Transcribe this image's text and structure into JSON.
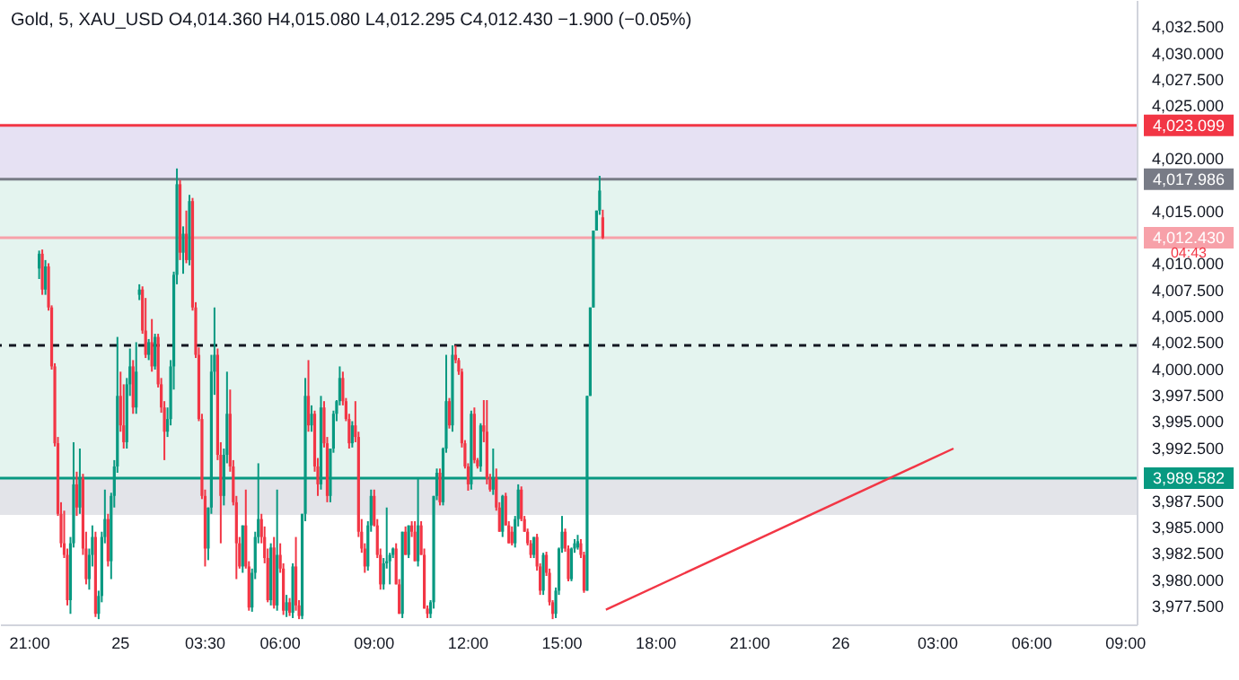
{
  "chart_data": {
    "type": "candlestick",
    "title": "Gold, 5, XAU_USD O4,014.360 H4,015.080 L4,012.295 C4,012.430 −1.900 (−0.05%)",
    "categories": [
      null,
      null,
      null,
      null,
      null,
      null,
      null,
      null,
      null,
      "21:00",
      null,
      null,
      null,
      null,
      null,
      null,
      null,
      null,
      null,
      null,
      null,
      null,
      null,
      null,
      null,
      null,
      null,
      null,
      null,
      null,
      null,
      null,
      null,
      null,
      null,
      null,
      null,
      null,
      "25",
      null,
      null,
      null,
      null,
      null,
      null,
      null,
      null,
      null,
      null,
      null,
      null,
      null,
      null,
      null,
      null,
      null,
      null,
      null,
      null,
      null,
      null,
      null,
      null,
      null,
      null,
      "03:30",
      null,
      null,
      null,
      null,
      null,
      null,
      null,
      null,
      null,
      null,
      null,
      null,
      null,
      null,
      null,
      null,
      null,
      null,
      null,
      null,
      null,
      null,
      null,
      "06:00",
      null,
      null,
      null,
      null,
      null,
      null,
      null,
      null,
      null,
      null,
      null,
      null,
      null,
      null,
      null,
      null,
      null,
      null,
      null,
      null,
      null,
      null,
      null,
      null,
      null,
      null,
      null,
      null,
      null,
      "09:00",
      null,
      null,
      null,
      null,
      null,
      null,
      null,
      null,
      null,
      null,
      null,
      null,
      null,
      null,
      null,
      null,
      null,
      null,
      null,
      null,
      null,
      null,
      null,
      null,
      null,
      null,
      null,
      null,
      null,
      "12:00",
      null,
      null,
      null,
      null,
      null,
      null,
      null,
      null,
      null,
      null,
      null,
      null,
      null,
      null,
      null,
      null,
      null,
      null,
      null,
      null,
      null,
      null,
      null,
      null,
      null,
      null,
      null,
      null,
      null,
      "15:00",
      null,
      null,
      null,
      null,
      null,
      null,
      null,
      null,
      null,
      null,
      null,
      null,
      null,
      null,
      null,
      null,
      null,
      null,
      null,
      null,
      null,
      null,
      null,
      null,
      null,
      null,
      null,
      null,
      null,
      "18:00",
      null,
      null,
      null,
      null,
      null,
      null,
      null,
      null,
      null,
      null,
      null,
      null,
      null,
      null,
      null,
      null,
      null,
      null,
      null,
      null,
      null,
      null,
      null,
      null,
      null,
      null,
      null,
      null,
      null,
      "21:00",
      null,
      null,
      null,
      null,
      null,
      null,
      null,
      null,
      null,
      null,
      null,
      null,
      null,
      null,
      null,
      null,
      null,
      null,
      null,
      null,
      null,
      null,
      null,
      null,
      null,
      null,
      null,
      null,
      "26",
      null,
      null,
      null,
      null,
      null,
      null,
      null,
      null,
      null,
      null,
      null,
      null,
      null,
      null,
      null,
      null,
      null,
      null,
      null,
      null,
      null,
      null,
      null,
      null,
      null,
      null,
      null,
      null,
      null,
      null,
      "03:00",
      null,
      null,
      null,
      null,
      null,
      null,
      null,
      null,
      null,
      null,
      null,
      null,
      null,
      null,
      null,
      null,
      null,
      null,
      null,
      null,
      null,
      null,
      null,
      null,
      null,
      null,
      null,
      null,
      null,
      "06:00",
      null,
      null,
      null,
      null,
      null,
      null,
      null,
      null,
      null,
      null,
      null,
      null,
      null,
      null,
      null,
      null,
      null,
      null,
      null,
      null,
      null,
      null,
      null,
      null,
      null,
      null,
      null,
      null,
      null,
      "09:00",
      null,
      null,
      null
    ],
    "ohlc": [
      null,
      null,
      null,
      null,
      null,
      null,
      null,
      null,
      null,
      null,
      null,
      null,
      [
        4009.5,
        4011.2,
        4008.5,
        4010.9
      ],
      [
        4010.9,
        4011.3,
        4007.0,
        4007.5
      ],
      [
        4007.5,
        4010.3,
        4007.0,
        4009.7
      ],
      [
        4009.7,
        4010.0,
        4005.5,
        4005.8
      ],
      [
        4005.8,
        4006.0,
        3999.9,
        4000.2
      ],
      [
        4000.2,
        4000.5,
        3992.6,
        3992.9
      ],
      [
        3992.9,
        3993.5,
        3986.0,
        3986.2
      ],
      [
        3986.2,
        3987.3,
        3983.0,
        3983.4
      ],
      [
        3983.4,
        3986.5,
        3982.0,
        3982.3
      ],
      [
        3982.3,
        3982.9,
        3977.5,
        3978.0
      ],
      [
        3978.0,
        3984.0,
        3976.7,
        3983.4
      ],
      [
        3983.4,
        3993.0,
        3983.0,
        3989.0
      ],
      [
        3989.0,
        3990.2,
        3986.0,
        3986.8
      ],
      [
        3986.8,
        3992.4,
        3986.2,
        3989.6
      ],
      [
        3989.6,
        3990.0,
        3982.3,
        3982.9
      ],
      [
        3982.9,
        3984.5,
        3979.5,
        3980.0
      ],
      [
        3980.0,
        3982.9,
        3979.0,
        3982.3
      ],
      [
        3982.3,
        3985.1,
        3981.2,
        3984.0
      ],
      [
        3984.0,
        3984.5,
        3976.4,
        3976.7
      ],
      [
        3976.7,
        3978.9,
        3976.2,
        3978.4
      ],
      [
        3978.4,
        3984.5,
        3977.8,
        3984.0
      ],
      [
        3984.0,
        3988.5,
        3983.4,
        3985.7
      ],
      [
        3985.7,
        3986.2,
        3981.2,
        3981.7
      ],
      [
        3981.7,
        3988.2,
        3980.0,
        3987.9
      ],
      [
        3987.9,
        3991.3,
        3986.8,
        3990.7
      ],
      [
        3990.7,
        4003.0,
        3990.1,
        3997.4
      ],
      [
        3997.4,
        3999.7,
        3994.0,
        3994.6
      ],
      [
        3994.6,
        3998.5,
        3992.4,
        3993.0
      ],
      [
        3993.0,
        3999.1,
        3992.4,
        3998.5
      ],
      [
        3998.5,
        4001.9,
        3997.4,
        4000.2
      ],
      [
        4000.2,
        4000.8,
        3995.7,
        3996.3
      ],
      [
        3996.3,
        4002.5,
        3995.7,
        3999.7
      ],
      [
        4007.0,
        4008.0,
        4006.5,
        4007.5
      ],
      [
        4007.5,
        4007.8,
        4003.3,
        4003.6
      ],
      [
        4003.6,
        4006.7,
        4001.0,
        4001.3
      ],
      [
        4001.3,
        4002.8,
        4000.8,
        4002.5
      ],
      [
        4002.5,
        4004.7,
        3999.7,
        4000.2
      ],
      [
        4000.2,
        4003.3,
        3999.9,
        4003.0
      ],
      [
        4003.0,
        4003.3,
        3998.2,
        3998.5
      ],
      [
        3998.5,
        3999.1,
        3995.8,
        3996.3
      ],
      [
        3996.3,
        3996.9,
        3991.3,
        3994.0
      ],
      [
        3994.0,
        3996.3,
        3993.5,
        3995.2
      ],
      [
        3995.2,
        4000.8,
        3994.6,
        4000.2
      ],
      [
        4000.2,
        4009.2,
        3998.0,
        4008.9
      ],
      [
        4008.9,
        4019.0,
        4008.0,
        4017.5
      ],
      [
        4017.5,
        4017.9,
        4010.3,
        4011.0
      ],
      [
        4011.0,
        4013.5,
        4009.0,
        4012.8
      ],
      [
        4012.8,
        4015.0,
        4010.0,
        4010.3
      ],
      [
        4010.3,
        4016.5,
        4009.8,
        4015.9
      ],
      [
        4015.9,
        4016.2,
        4005.5,
        4005.8
      ],
      [
        4005.8,
        4006.3,
        4001.0,
        4001.3
      ],
      [
        4001.3,
        4002.0,
        3995.0,
        3995.2
      ],
      [
        3995.2,
        3995.7,
        3987.6,
        3987.9
      ],
      [
        3987.9,
        3988.5,
        3981.2,
        3982.9
      ],
      [
        3982.9,
        3986.8,
        3981.8,
        3986.8
      ],
      [
        3986.8,
        4001.3,
        3986.2,
        3999.7
      ],
      [
        3999.7,
        4005.8,
        3997.5,
        4001.3
      ],
      [
        4001.3,
        4001.9,
        3991.3,
        3991.8
      ],
      [
        3991.8,
        3993.0,
        3983.4,
        3987.9
      ],
      [
        3987.9,
        3992.4,
        3987.0,
        3991.8
      ],
      [
        3991.8,
        3999.7,
        3991.0,
        3995.7
      ],
      [
        3995.7,
        3998.0,
        3990.2,
        3990.7
      ],
      [
        3990.7,
        3991.3,
        3987.0,
        3987.3
      ],
      [
        3987.3,
        3987.9,
        3980.0,
        3983.4
      ],
      [
        3983.4,
        3984.0,
        3981.0,
        3981.2
      ],
      [
        3981.2,
        3985.1,
        3980.6,
        3985.1
      ],
      [
        3985.1,
        3988.5,
        3981.0,
        3981.2
      ],
      [
        3981.2,
        3981.7,
        3977.0,
        3977.3
      ],
      [
        3977.3,
        3981.0,
        3976.9,
        3980.6
      ],
      [
        3980.6,
        3984.5,
        3980.0,
        3984.0
      ],
      [
        3984.0,
        3991.0,
        3983.4,
        3985.7
      ],
      [
        3985.7,
        3986.2,
        3983.4,
        3984.0
      ],
      [
        3984.0,
        3985.0,
        3981.5,
        3982.0
      ],
      [
        3982.0,
        3982.9,
        3977.8,
        3978.0
      ],
      [
        3978.0,
        3983.4,
        3977.5,
        3983.0
      ],
      [
        3983.0,
        3984.0,
        3977.2,
        3977.5
      ],
      [
        3977.5,
        3988.5,
        3977.0,
        3982.3
      ],
      [
        3982.3,
        3983.4,
        3980.6,
        3981.0
      ],
      [
        3981.0,
        3981.5,
        3976.6,
        3977.0
      ],
      [
        3977.0,
        3978.5,
        3976.4,
        3977.8
      ],
      [
        3977.8,
        3978.2,
        3976.5,
        3976.8
      ],
      [
        3976.8,
        3981.5,
        3976.3,
        3981.2
      ],
      [
        3981.2,
        3984.0,
        3977.0,
        3977.5
      ],
      [
        3977.5,
        3978.0,
        3976.2,
        3976.5
      ],
      [
        3976.5,
        3986.2,
        3976.2,
        3986.2
      ],
      [
        3986.2,
        3999.1,
        3985.5,
        3997.4
      ],
      [
        3997.4,
        4000.8,
        3994.0,
        3994.6
      ],
      [
        3994.6,
        3996.5,
        3994.0,
        3995.7
      ],
      [
        3995.7,
        3996.0,
        3990.2,
        3990.7
      ],
      [
        3990.7,
        3991.5,
        3987.9,
        3989.0
      ],
      [
        3989.0,
        3997.4,
        3988.5,
        3996.3
      ],
      [
        3996.3,
        3996.9,
        3992.5,
        3992.9
      ],
      [
        3992.9,
        3993.5,
        3987.3,
        3987.9
      ],
      [
        3987.9,
        3992.4,
        3987.3,
        3992.4
      ],
      [
        3992.4,
        3996.0,
        3992.0,
        3995.7
      ],
      [
        3995.7,
        3997.0,
        3995.0,
        3996.9
      ],
      [
        3996.9,
        4000.2,
        3996.5,
        3999.1
      ],
      [
        3999.1,
        3999.7,
        3996.5,
        3996.9
      ],
      [
        3996.9,
        3997.2,
        3995.0,
        3995.2
      ],
      [
        3995.2,
        3995.7,
        3992.4,
        3992.9
      ],
      [
        3992.9,
        3995.0,
        3992.5,
        3994.6
      ],
      [
        3994.6,
        3996.9,
        3993.0,
        3993.5
      ],
      [
        3993.5,
        3994.0,
        3984.0,
        3984.5
      ],
      [
        3984.5,
        3985.7,
        3982.5,
        3982.9
      ],
      [
        3982.9,
        3983.4,
        3980.6,
        3981.2
      ],
      [
        3981.2,
        3985.5,
        3980.8,
        3985.1
      ],
      [
        3985.1,
        3988.5,
        3984.5,
        3987.9
      ],
      [
        3987.9,
        3988.5,
        3985.0,
        3985.1
      ],
      [
        3985.1,
        3985.7,
        3982.0,
        3982.3
      ],
      [
        3982.3,
        3982.9,
        3979.0,
        3979.5
      ],
      [
        3979.5,
        3982.0,
        3979.0,
        3981.5
      ],
      [
        3981.5,
        3986.8,
        3981.0,
        3981.7
      ],
      [
        3981.7,
        3982.5,
        3979.5,
        3982.3
      ],
      [
        3982.3,
        3983.0,
        3982.0,
        3982.9
      ],
      [
        3982.9,
        3983.4,
        3979.5,
        3979.5
      ],
      [
        3979.5,
        3980.0,
        3976.7,
        3976.7
      ],
      [
        3976.7,
        3984.5,
        3976.3,
        3984.5
      ],
      [
        3984.5,
        3985.0,
        3982.3,
        3982.3
      ],
      [
        3982.3,
        3985.1,
        3982.0,
        3985.1
      ],
      [
        3985.1,
        3985.5,
        3984.0,
        3984.5
      ],
      [
        3984.5,
        3985.5,
        3981.7,
        3981.7
      ],
      [
        3981.7,
        3989.6,
        3981.2,
        3985.1
      ],
      [
        3985.1,
        3985.5,
        3982.3,
        3982.3
      ],
      [
        3982.3,
        3982.9,
        3977.2,
        3977.2
      ],
      [
        3977.2,
        3977.5,
        3976.3,
        3976.7
      ],
      [
        3976.7,
        3978.0,
        3976.3,
        3977.8
      ],
      [
        3977.8,
        3987.9,
        3977.2,
        3987.9
      ],
      [
        3987.9,
        3990.5,
        3987.5,
        3990.1
      ],
      [
        3990.1,
        3990.5,
        3987.0,
        3987.3
      ],
      [
        3987.3,
        3992.5,
        3987.0,
        3992.4
      ],
      [
        3992.4,
        4001.3,
        3992.0,
        3996.9
      ],
      [
        3996.9,
        3997.2,
        3994.3,
        3994.6
      ],
      [
        3994.6,
        4002.2,
        3994.0,
        4001.3
      ],
      [
        4001.3,
        4002.2,
        4000.5,
        4000.8
      ],
      [
        4000.8,
        4001.0,
        3999.4,
        3999.7
      ],
      [
        3999.7,
        4000.0,
        3992.5,
        3992.9
      ],
      [
        3992.9,
        3993.2,
        3990.5,
        3990.7
      ],
      [
        3990.7,
        3991.0,
        3988.4,
        3989.0
      ],
      [
        3989.0,
        3996.0,
        3988.5,
        3995.7
      ],
      [
        3995.7,
        3996.3,
        3991.0,
        3991.3
      ],
      [
        3991.3,
        3991.5,
        3990.5,
        3990.7
      ],
      [
        3990.7,
        3994.8,
        3990.2,
        3994.6
      ],
      [
        3994.6,
        3997.0,
        3993.0,
        3994.0
      ],
      [
        3994.0,
        3997.0,
        3989.0,
        3989.6
      ],
      [
        3989.6,
        3990.0,
        3988.3,
        3988.5
      ],
      [
        3988.5,
        3992.4,
        3988.0,
        3989.6
      ],
      [
        3989.6,
        3990.5,
        3986.5,
        3986.8
      ],
      [
        3986.8,
        3987.3,
        3984.5,
        3984.5
      ],
      [
        3984.5,
        3988.0,
        3984.0,
        3987.9
      ],
      [
        3987.9,
        3988.2,
        3985.1,
        3985.1
      ],
      [
        3985.1,
        3985.5,
        3983.4,
        3983.4
      ],
      [
        3984.5,
        3985.0,
        3983.2,
        3983.4
      ],
      [
        3983.4,
        3986.0,
        3983.0,
        3985.7
      ],
      [
        3985.7,
        3989.0,
        3985.0,
        3988.5
      ],
      [
        3988.5,
        3988.8,
        3985.5,
        3985.7
      ],
      [
        3985.7,
        3986.0,
        3984.5,
        3984.5
      ],
      [
        3984.5,
        3984.8,
        3983.2,
        3983.4
      ],
      [
        3983.4,
        3983.7,
        3982.0,
        3982.3
      ],
      [
        3982.3,
        3984.0,
        3982.0,
        3984.0
      ],
      [
        3984.0,
        3984.3,
        3980.8,
        3981.2
      ],
      [
        3981.2,
        3981.5,
        3978.5,
        3978.9
      ],
      [
        3978.9,
        3982.5,
        3978.5,
        3982.3
      ],
      [
        3982.3,
        3982.6,
        3980.3,
        3980.6
      ],
      [
        3980.6,
        3981.0,
        3977.5,
        3977.8
      ],
      [
        3977.8,
        3978.0,
        3976.2,
        3976.7
      ],
      [
        3976.7,
        3979.2,
        3976.3,
        3978.9
      ],
      [
        3978.9,
        3983.0,
        3978.5,
        3982.9
      ],
      [
        3982.9,
        3986.0,
        3982.5,
        3984.5
      ],
      [
        3984.5,
        3984.8,
        3982.6,
        3982.9
      ],
      [
        3982.9,
        3983.2,
        3979.8,
        3980.0
      ],
      [
        3980.0,
        3983.0,
        3979.8,
        3982.9
      ],
      [
        3982.9,
        3983.8,
        3982.5,
        3983.4
      ],
      [
        3983.0,
        3984.2,
        3982.8,
        3983.6
      ],
      [
        3983.4,
        3983.8,
        3982.0,
        3982.3
      ],
      [
        3982.3,
        3982.6,
        3978.7,
        3978.9
      ],
      [
        3978.9,
        3997.4,
        3978.9,
        3997.4
      ],
      [
        3997.4,
        4005.8,
        3997.4,
        4005.8
      ],
      [
        4005.8,
        4013.1,
        4005.8,
        4013.1
      ],
      [
        4013.1,
        4015.0,
        4013.1,
        4015.0
      ],
      [
        4015.0,
        4018.3,
        4014.6,
        4016.9
      ],
      [
        4014.36,
        4015.08,
        4012.295,
        4012.43
      ],
      null,
      null,
      null,
      null,
      null,
      null,
      null,
      null,
      null,
      null,
      null,
      null,
      null,
      null,
      null,
      null,
      null,
      null,
      null,
      null,
      null,
      null,
      null,
      null,
      null,
      null,
      null,
      null,
      null,
      null,
      null,
      null,
      null,
      null,
      null,
      null,
      null,
      null,
      null,
      null,
      null,
      null,
      null,
      null,
      null,
      null,
      null,
      null,
      null,
      null,
      null,
      null,
      null,
      null,
      null,
      null,
      null,
      null,
      null,
      null,
      null,
      null,
      null,
      null,
      null,
      null,
      null,
      null,
      null,
      null,
      null,
      null,
      null,
      null,
      null,
      null,
      null,
      null,
      null,
      null,
      null,
      null,
      null,
      null,
      null,
      null,
      null,
      null,
      null,
      null,
      null,
      null,
      null,
      null,
      null,
      null,
      null,
      null,
      null,
      null,
      null,
      null,
      null,
      null,
      null,
      null,
      null,
      null,
      null,
      null,
      null,
      null,
      null,
      null,
      null,
      null,
      null,
      null,
      null,
      null,
      null,
      null,
      null,
      null,
      null,
      null,
      null,
      null,
      null,
      null,
      null,
      null,
      null,
      null,
      null,
      null,
      null,
      null,
      null,
      null,
      null,
      null,
      null,
      null,
      null,
      null,
      null,
      null,
      null,
      null,
      null,
      null,
      null,
      null,
      null,
      null,
      null,
      null,
      null,
      null,
      null,
      null,
      null,
      null,
      null,
      null,
      null,
      null,
      null,
      null
    ],
    "colors": [
      null,
      null,
      null,
      null,
      null,
      null,
      null,
      null,
      null,
      null,
      null,
      null,
      "#089981",
      "#f23645",
      "#089981",
      "#f23645",
      "#f23645",
      "#f23645",
      "#f23645",
      "#f23645",
      "#f23645",
      "#f23645",
      "#089981",
      "#089981",
      "#f23645",
      "#089981",
      "#f23645",
      "#f23645",
      "#089981",
      "#089981",
      "#f23645",
      "#089981",
      "#089981",
      "#089981",
      "#f23645",
      "#089981",
      "#089981",
      "#089981",
      "#f23645",
      "#f23645",
      "#089981",
      "#089981",
      "#f23645",
      "#089981",
      "#089981",
      "#f23645",
      "#f23645",
      "#089981",
      "#f23645",
      "#089981",
      "#f23645",
      "#f23645",
      "#f23645",
      "#089981",
      "#089981",
      "#089981",
      "#089981",
      "#f23645",
      "#089981",
      "#f23645",
      "#089981",
      "#f23645",
      "#f23645",
      "#f23645",
      "#f23645",
      "#f23645",
      "#089981",
      "#089981",
      "#089981",
      "#f23645",
      "#f23645",
      "#089981",
      "#089981",
      "#f23645",
      "#f23645",
      "#f23645",
      "#f23645",
      "#089981",
      "#f23645",
      "#f23645",
      "#089981",
      "#089981",
      "#089981",
      "#f23645",
      "#f23645",
      "#f23645",
      "#089981",
      "#f23645",
      "#089981",
      "#f23645",
      "#f23645",
      "#089981",
      "#f23645",
      "#089981",
      "#f23645",
      "#f23645",
      "#089981",
      "#089981",
      "#f23645",
      "#089981",
      "#f23645",
      "#f23645",
      "#089981",
      "#f23645",
      "#f23645",
      "#089981",
      "#089981",
      "#089981",
      "#089981",
      "#f23645",
      "#f23645",
      "#f23645",
      "#089981",
      "#f23645",
      "#f23645",
      "#f23645",
      "#f23645",
      "#089981",
      "#089981",
      "#f23645",
      "#f23645",
      "#f23645",
      "#089981",
      "#089981",
      "#089981",
      "#089981",
      "#f23645",
      "#f23645",
      "#089981",
      "#f23645",
      "#089981",
      "#f23645",
      "#f23645",
      "#089981",
      "#f23645",
      "#f23645",
      "#f23645",
      "#089981",
      "#089981",
      "#089981",
      "#f23645",
      "#089981",
      "#089981",
      "#f23645",
      "#089981",
      "#f23645",
      "#f23645",
      "#f23645",
      "#f23645",
      "#f23645",
      "#089981",
      "#f23645",
      "#f23645",
      "#089981",
      "#f23645",
      "#f23645",
      "#f23645",
      "#089981",
      "#f23645",
      "#f23645",
      "#089981",
      "#f23645",
      "#f23645",
      "#f23645",
      "#089981",
      "#089981",
      "#f23645",
      "#f23645",
      "#f23645",
      "#f23645",
      "#089981",
      "#f23645",
      "#f23645",
      "#089981",
      "#f23645",
      "#f23645",
      "#f23645",
      "#089981",
      "#089981",
      "#089981",
      "#f23645",
      "#f23645",
      "#089981",
      "#089981",
      "#089981",
      "#f23645",
      "#f23645",
      "#089981",
      "#089981",
      "#089981",
      "#089981",
      "#089981",
      "#f23645",
      null,
      null,
      null,
      null,
      null,
      null,
      null,
      null,
      null,
      null,
      null,
      null,
      null,
      null,
      null,
      null,
      null,
      null,
      null,
      null,
      null,
      null,
      null,
      null,
      null,
      null,
      null,
      null,
      null,
      null,
      null,
      null,
      null,
      null,
      null,
      null,
      null,
      null,
      null,
      null,
      null,
      null,
      null,
      null,
      null,
      null,
      null,
      null,
      null,
      null,
      null,
      null,
      null,
      null,
      null,
      null,
      null,
      null,
      null,
      null,
      null,
      null,
      null,
      null,
      null,
      null,
      null,
      null,
      null,
      null,
      null,
      null,
      null,
      null,
      null,
      null,
      null,
      null,
      null,
      null,
      null,
      null,
      null,
      null,
      null,
      null,
      null,
      null,
      null,
      null,
      null,
      null,
      null,
      null,
      null,
      null,
      null,
      null,
      null,
      null,
      null,
      null,
      null,
      null,
      null,
      null,
      null,
      null,
      null,
      null,
      null,
      null,
      null,
      null,
      null,
      null,
      null,
      null,
      null,
      null,
      null,
      null,
      null,
      null,
      null,
      null,
      null,
      null,
      null,
      null,
      null,
      null,
      null,
      null,
      null,
      null,
      null,
      null,
      null,
      null,
      null,
      null,
      null,
      null,
      null,
      null,
      null,
      null,
      null,
      null,
      null,
      null,
      null,
      null,
      null,
      null,
      null,
      null,
      null,
      null,
      null,
      null,
      null,
      null,
      null,
      null,
      null,
      null,
      null,
      null
    ],
    "series": [
      {
        "type": "line",
        "color": "#f23645",
        "values": [
          null,
          null,
          null,
          null,
          null,
          null,
          null,
          null,
          null,
          null,
          null,
          null,
          null,
          null,
          null,
          null,
          null,
          null,
          null,
          null,
          null,
          null,
          null,
          null,
          null,
          null,
          null,
          null,
          null,
          null,
          null,
          null,
          null,
          null,
          null,
          null,
          null,
          null,
          null,
          null,
          null,
          null,
          null,
          null,
          null,
          null,
          null,
          null,
          null,
          null,
          null,
          null,
          null,
          null,
          null,
          null,
          null,
          null,
          null,
          null,
          null,
          null,
          null,
          null,
          null,
          null,
          null,
          null,
          null,
          null,
          null,
          null,
          null,
          null,
          null,
          null,
          null,
          null,
          null,
          null,
          null,
          null,
          null,
          null,
          null,
          null,
          null,
          null,
          null,
          null,
          null,
          null,
          null,
          null,
          null,
          null,
          null,
          null,
          null,
          null,
          null,
          null,
          null,
          null,
          null,
          null,
          null,
          null,
          null,
          null,
          null,
          null,
          null,
          null,
          null,
          null,
          null,
          null,
          null,
          null,
          null,
          null,
          null,
          null,
          null,
          null,
          null,
          null,
          null,
          null,
          null,
          null,
          null,
          null,
          null,
          null,
          null,
          null,
          null,
          null,
          null,
          null,
          null,
          null,
          null,
          null,
          null,
          null,
          null,
          null,
          null,
          null,
          null,
          null,
          null,
          null,
          null,
          null,
          null,
          null,
          null,
          null,
          null,
          null,
          null,
          null,
          null,
          null,
          null,
          null,
          null,
          null,
          null,
          null,
          null,
          null,
          null,
          null,
          null,
          null,
          null,
          null,
          null,
          null,
          null,
          null,
          null,
          null,
          null,
          null,
          null,
          null,
          null,
          3977.1,
          null,
          null,
          null,
          null,
          null,
          null,
          null,
          null,
          null,
          null,
          null,
          null,
          null,
          null,
          null,
          null,
          null,
          null,
          null,
          null,
          null,
          null,
          null,
          null,
          null,
          null,
          null,
          null,
          null,
          null,
          null,
          null,
          null,
          null,
          null,
          null,
          null,
          null,
          null,
          null,
          null,
          null,
          null,
          null,
          null,
          null,
          null,
          null,
          null,
          null,
          null,
          null,
          null,
          null,
          null,
          null,
          null,
          null,
          null,
          null,
          null,
          null,
          null,
          null,
          null,
          null,
          null,
          null,
          null,
          null,
          null,
          null,
          null,
          null,
          null,
          null,
          null,
          null,
          null,
          null,
          null,
          null,
          null,
          null,
          null,
          null,
          null,
          null,
          null,
          null,
          null,
          null,
          null,
          null,
          null,
          null,
          null,
          null,
          null,
          null,
          null,
          null,
          null,
          null,
          null,
          null,
          null,
          null,
          null,
          null,
          3992.4,
          null,
          null,
          null,
          null,
          null,
          null,
          null,
          null,
          null,
          null,
          null,
          null,
          null,
          null,
          null,
          null,
          null,
          null,
          null,
          null,
          null,
          null,
          null,
          null,
          null,
          null,
          null,
          null,
          null,
          null,
          null,
          null,
          null,
          null,
          null,
          null,
          null,
          null,
          null,
          null,
          null,
          null,
          null,
          null,
          null,
          null,
          null,
          null,
          null,
          null,
          null,
          null,
          null,
          null,
          null,
          null,
          null,
          null
        ]
      }
    ],
    "ylim": [
      3975.7,
      4035.0
    ],
    "yticks": [
      {
        "value": 3977.5,
        "label": "3,977.500"
      },
      {
        "value": 3980,
        "label": "3,980.000"
      },
      {
        "value": 3982.5,
        "label": "3,982.500"
      },
      {
        "value": 3985,
        "label": "3,985.000"
      },
      {
        "value": 3987.5,
        "label": "3,987.500"
      },
      {
        "value": 3992.5,
        "label": "3,992.500"
      },
      {
        "value": 3995,
        "label": "3,995.000"
      },
      {
        "value": 3997.5,
        "label": "3,997.500"
      },
      {
        "value": 4000,
        "label": "4,000.000"
      },
      {
        "value": 4002.5,
        "label": "4,002.500"
      },
      {
        "value": 4005,
        "label": "4,005.000"
      },
      {
        "value": 4007.5,
        "label": "4,007.500"
      },
      {
        "value": 4010,
        "label": "4,010.000"
      },
      {
        "value": 4015,
        "label": "4,015.000"
      },
      {
        "value": 4020,
        "label": "4,020.000"
      },
      {
        "value": 4025,
        "label": "4,025.000"
      },
      {
        "value": 4027.5,
        "label": "4,027.500"
      },
      {
        "value": 4030,
        "label": "4,030.000"
      },
      {
        "value": 4032.5,
        "label": "4,032.500"
      }
    ],
    "bands": [
      {
        "axis": "y",
        "from": 4017.986,
        "to": 4023.099,
        "color": "#e6e1f3"
      },
      {
        "axis": "y",
        "from": 3989.582,
        "to": 4017.986,
        "color": "#e4f4ef"
      },
      {
        "axis": "y",
        "from": 3986.1,
        "to": 3989.582,
        "color": "#e3e4e9"
      }
    ],
    "ref_lines": [
      {
        "axis": "y",
        "value": 4023.099,
        "label": "4,023.099",
        "color": "#f23645"
      },
      {
        "axis": "y",
        "value": 4017.986,
        "label": "4,017.986",
        "color": "#787b86"
      },
      {
        "axis": "y",
        "value": 4012.43,
        "label": "4,012.430",
        "color": "#f7a1a9"
      },
      {
        "axis": "y",
        "value": 3989.582,
        "label": "3,989.582",
        "color": "#089981"
      },
      {
        "axis": "y",
        "value": 4002.2,
        "color": "#131722",
        "line_style": "dashed"
      }
    ],
    "annotations": [
      "04:43"
    ],
    "grid": false
  }
}
